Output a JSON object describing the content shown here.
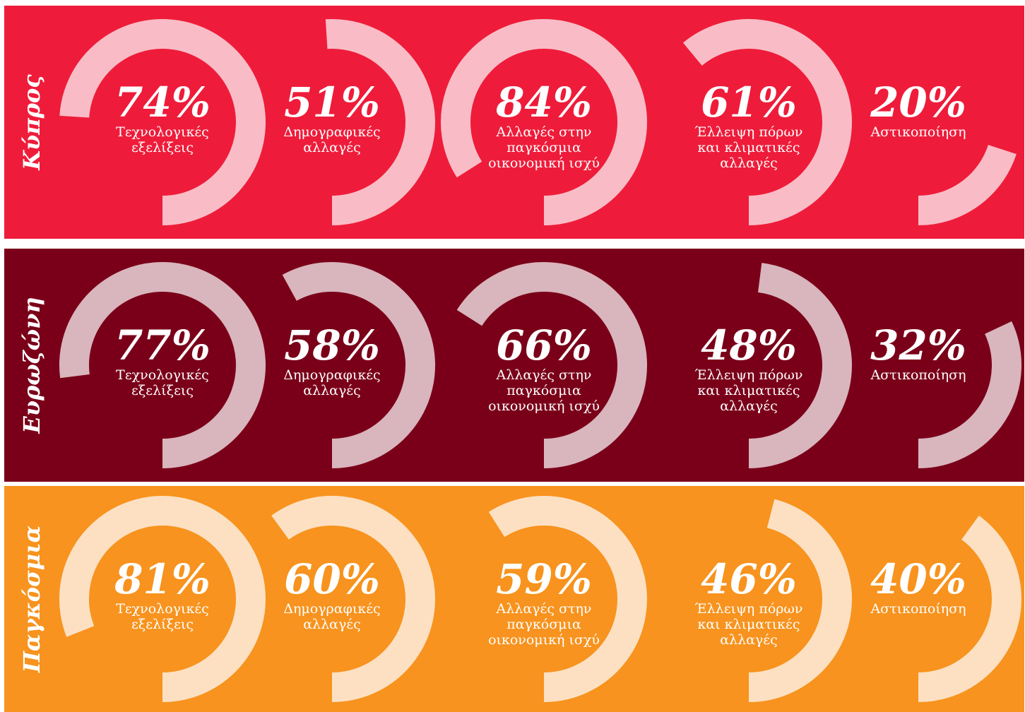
{
  "chart_data": [
    {
      "type": "arc",
      "title": "Κύπρος",
      "background": "#ee1c3a",
      "color": "#f9bcc6",
      "categories": [
        [
          "Τεχνολογικές",
          "εξελίξεις"
        ],
        [
          "Δημογραφικές",
          "αλλαγές"
        ],
        [
          "Αλλαγές στην",
          "παγκόσμια",
          "οικονομική ισχύ"
        ],
        [
          "Έλλειψη πόρων",
          "και κλιματικές",
          "αλλαγές"
        ],
        [
          "Αστικοποίηση"
        ]
      ],
      "values": [
        74,
        51,
        84,
        61,
        20
      ],
      "value_labels": [
        "74%",
        "51%",
        "84%",
        "61%",
        "20%"
      ]
    },
    {
      "type": "arc",
      "title": "Ευρωζώνη",
      "background": "#7a0019",
      "color": "#d9b5bd",
      "categories": [
        [
          "Τεχνολογικές",
          "εξελίξεις"
        ],
        [
          "Δημογραφικές",
          "αλλαγές"
        ],
        [
          "Αλλαγές στην",
          "παγκόσμια",
          "οικονομική ισχύ"
        ],
        [
          "Έλλειψη πόρων",
          "και κλιματικές",
          "αλλαγές"
        ],
        [
          "Αστικοποίηση"
        ]
      ],
      "values": [
        77,
        58,
        66,
        48,
        32
      ],
      "value_labels": [
        "77%",
        "58%",
        "66%",
        "48%",
        "32%"
      ]
    },
    {
      "type": "arc",
      "title": "Παγκόσμια",
      "background": "#f7931e",
      "color": "#fde0c2",
      "categories": [
        [
          "Τεχνολογικές",
          "εξελίξεις"
        ],
        [
          "Δημογραφικές",
          "αλλαγές"
        ],
        [
          "Αλλαγές στην",
          "παγκόσμια",
          "οικονομική ισχύ"
        ],
        [
          "Έλλειψη πόρων",
          "και κλιματικές",
          "αλλαγές"
        ],
        [
          "Αστικοποίηση"
        ]
      ],
      "values": [
        81,
        60,
        59,
        46,
        40
      ],
      "value_labels": [
        "81%",
        "60%",
        "59%",
        "46%",
        "40%"
      ]
    }
  ]
}
